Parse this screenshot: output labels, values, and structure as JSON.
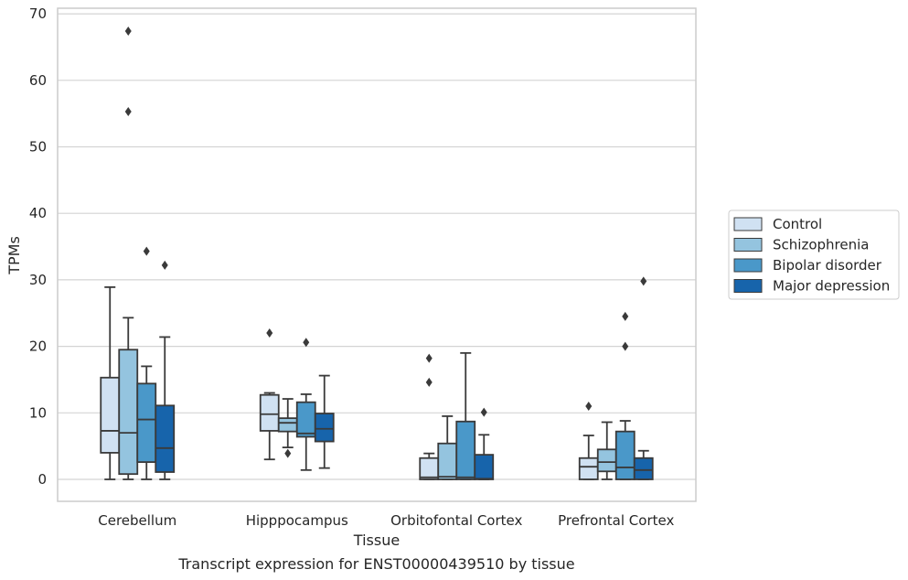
{
  "chart_data": {
    "type": "box",
    "title": "Transcript expression for ENST00000439510 by tissue",
    "xlabel": "Tissue",
    "ylabel": "TPMs",
    "ylim": [
      -3.2,
      71
    ],
    "yticks": [
      0,
      10,
      20,
      30,
      40,
      50,
      60,
      70
    ],
    "grid": "horizontal",
    "legend_position": "right",
    "categories": [
      "Cerebellum",
      "Hipppocampus",
      "Orbitofontal Cortex",
      "Prefrontal Cortex"
    ],
    "series": [
      {
        "name": "Control",
        "color": "#d0e1f2",
        "boxes": [
          {
            "whislo": 0.0,
            "q1": 4.0,
            "med": 7.3,
            "q3": 15.3,
            "whishi": 28.9,
            "fliers": []
          },
          {
            "whislo": 3.0,
            "q1": 7.3,
            "med": 9.8,
            "q3": 12.7,
            "whishi": 13.0,
            "fliers": [
              22.0
            ]
          },
          {
            "whislo": 0.0,
            "q1": 0.0,
            "med": 0.3,
            "q3": 3.2,
            "whishi": 3.9,
            "fliers": [
              14.6,
              18.2
            ]
          },
          {
            "whislo": 0.0,
            "q1": 0.0,
            "med": 1.9,
            "q3": 3.2,
            "whishi": 6.6,
            "fliers": [
              11.0
            ]
          }
        ]
      },
      {
        "name": "Schizophrenia",
        "color": "#94c4df",
        "boxes": [
          {
            "whislo": 0.0,
            "q1": 0.8,
            "med": 7.0,
            "q3": 19.5,
            "whishi": 24.3,
            "fliers": [
              55.3,
              67.4
            ]
          },
          {
            "whislo": 4.8,
            "q1": 7.2,
            "med": 8.5,
            "q3": 9.2,
            "whishi": 12.1,
            "fliers": [
              3.9
            ]
          },
          {
            "whislo": 0.0,
            "q1": 0.0,
            "med": 0.4,
            "q3": 5.4,
            "whishi": 9.5,
            "fliers": []
          },
          {
            "whislo": 0.0,
            "q1": 1.2,
            "med": 2.6,
            "q3": 4.5,
            "whishi": 8.6,
            "fliers": []
          }
        ]
      },
      {
        "name": "Bipolar disorder",
        "color": "#4a98c9",
        "boxes": [
          {
            "whislo": 0.0,
            "q1": 2.6,
            "med": 9.0,
            "q3": 14.4,
            "whishi": 17.0,
            "fliers": [
              34.3
            ]
          },
          {
            "whislo": 1.4,
            "q1": 6.4,
            "med": 6.9,
            "q3": 11.6,
            "whishi": 12.8,
            "fliers": [
              20.6
            ]
          },
          {
            "whislo": 0.0,
            "q1": 0.0,
            "med": 0.3,
            "q3": 8.7,
            "whishi": 19.0,
            "fliers": []
          },
          {
            "whislo": 0.0,
            "q1": 0.0,
            "med": 1.8,
            "q3": 7.2,
            "whishi": 8.8,
            "fliers": [
              20.0,
              24.5
            ]
          }
        ]
      },
      {
        "name": "Major depression",
        "color": "#1764ab",
        "boxes": [
          {
            "whislo": 0.0,
            "q1": 1.1,
            "med": 4.7,
            "q3": 11.1,
            "whishi": 21.4,
            "fliers": [
              32.2
            ]
          },
          {
            "whislo": 1.7,
            "q1": 5.7,
            "med": 7.6,
            "q3": 9.9,
            "whishi": 15.6,
            "fliers": []
          },
          {
            "whislo": 0.0,
            "q1": 0.0,
            "med": 0.1,
            "q3": 3.7,
            "whishi": 6.7,
            "fliers": [
              10.1
            ]
          },
          {
            "whislo": 0.0,
            "q1": 0.0,
            "med": 1.4,
            "q3": 3.2,
            "whishi": 4.3,
            "fliers": [
              29.8
            ]
          }
        ]
      }
    ]
  }
}
